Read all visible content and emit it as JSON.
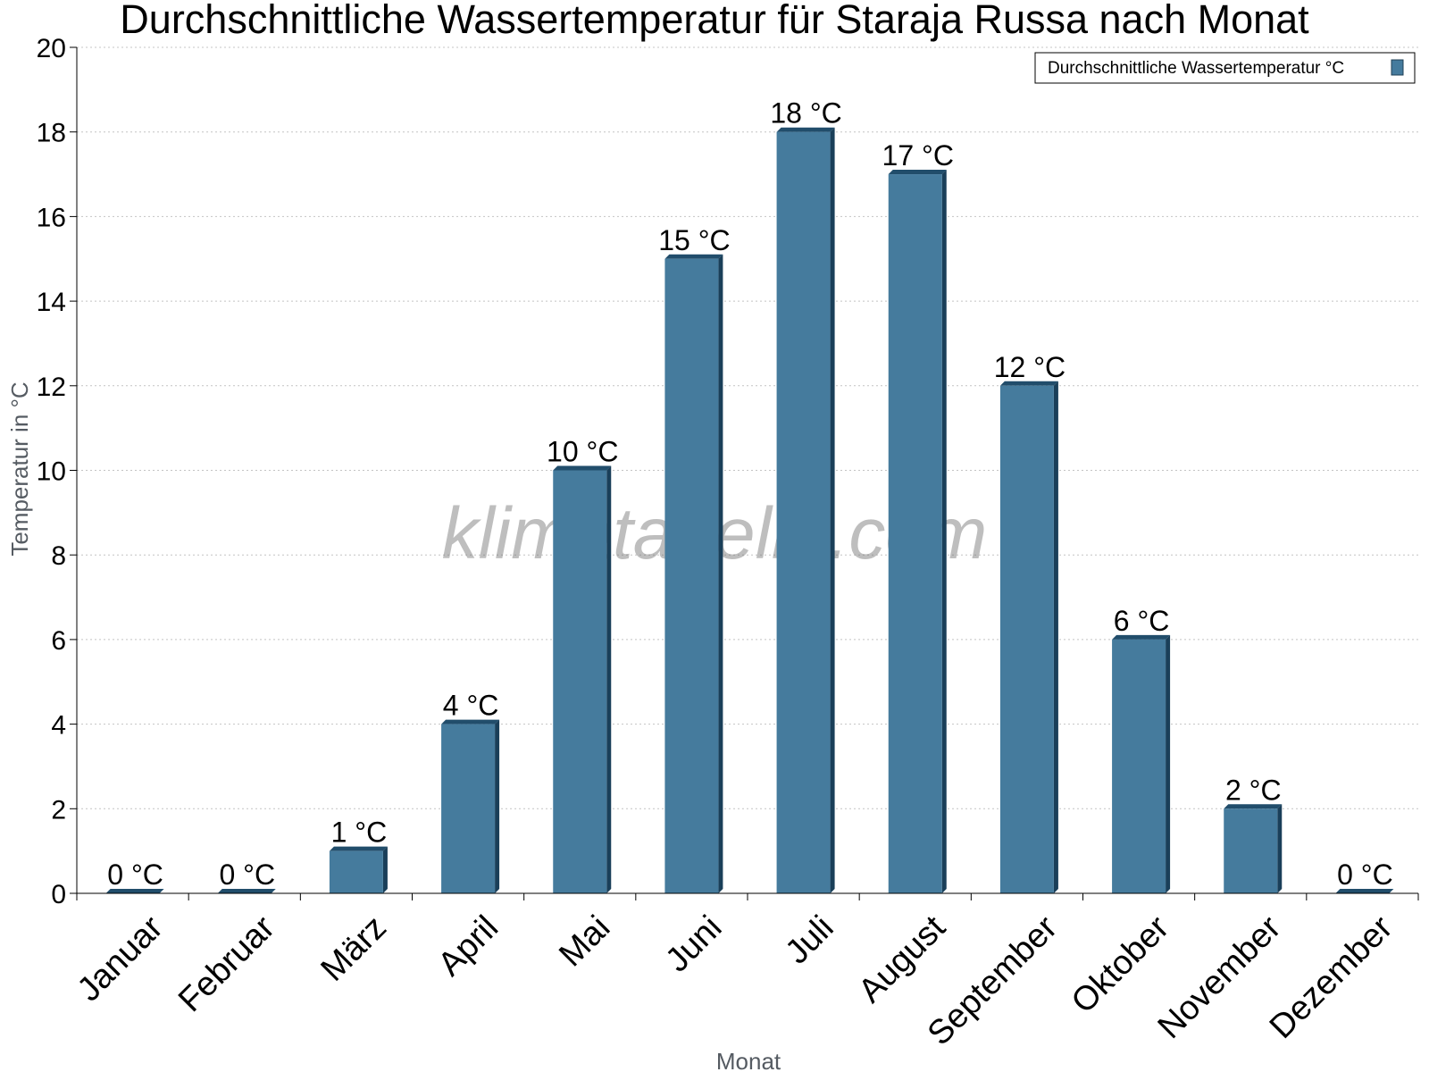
{
  "watermark": "klimatabelle.com",
  "chart_data": {
    "type": "bar",
    "title": "Durchschnittliche Wassertemperatur für Staraja Russa nach Monat",
    "xlabel": "Monat",
    "ylabel": "Temperatur in °C",
    "ylim": [
      0,
      20
    ],
    "yticks": [
      0,
      2,
      4,
      6,
      8,
      10,
      12,
      14,
      16,
      18,
      20
    ],
    "grid": true,
    "legend_position": "top-right",
    "categories": [
      "Januar",
      "Februar",
      "März",
      "April",
      "Mai",
      "Juni",
      "Juli",
      "August",
      "September",
      "Oktober",
      "November",
      "Dezember"
    ],
    "series": [
      {
        "name": "Durchschnittliche Wassertemperatur °C",
        "color": "#457b9d",
        "values": [
          0,
          0,
          1,
          4,
          10,
          15,
          18,
          17,
          12,
          6,
          2,
          0
        ],
        "data_labels": [
          "0 °C",
          "0 °C",
          "1 °C",
          "4 °C",
          "10 °C",
          "15 °C",
          "18 °C",
          "17 °C",
          "12 °C",
          "6 °C",
          "2 °C",
          "0 °C"
        ]
      }
    ]
  }
}
